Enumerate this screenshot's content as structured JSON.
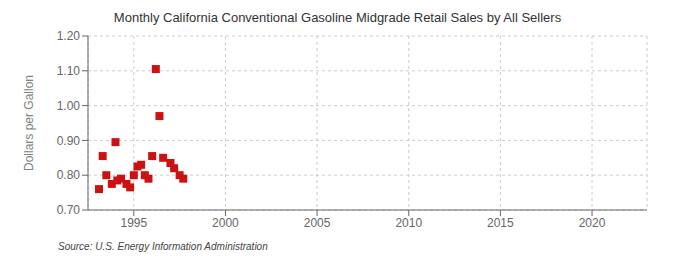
{
  "chart_data": {
    "type": "scatter",
    "title": "Monthly California Conventional Gasoline Midgrade Retail Sales by All Sellers",
    "y_label": "Dollars per Gallon",
    "annotations": [
      "Source: U.S. Energy Information Administration"
    ],
    "x": [
      1993.1,
      1993.3,
      1993.5,
      1993.8,
      1994.0,
      1994.1,
      1994.3,
      1994.6,
      1994.8,
      1995.0,
      1995.2,
      1995.4,
      1995.6,
      1995.8,
      1996.0,
      1996.2,
      1996.4,
      1996.6,
      1997.0,
      1997.2,
      1997.5,
      1997.7
    ],
    "values": [
      0.76,
      0.855,
      0.8,
      0.775,
      0.895,
      0.785,
      0.79,
      0.775,
      0.765,
      0.8,
      0.825,
      0.83,
      0.8,
      0.79,
      0.855,
      1.105,
      0.97,
      0.85,
      0.835,
      0.82,
      0.8,
      0.79
    ],
    "color": "#cc1111",
    "marker": "square",
    "xlim": [
      1992.5,
      2023
    ],
    "ylim": [
      0.7,
      1.2
    ],
    "xticks": [
      1995,
      2000,
      2005,
      2010,
      2015,
      2020
    ],
    "yticks": [
      {
        "value": 0.7,
        "label": "0.70"
      },
      {
        "value": 0.8,
        "label": "0.80"
      },
      {
        "value": 0.9,
        "label": "0.90"
      },
      {
        "value": 1.0,
        "label": "1.00"
      },
      {
        "value": 1.1,
        "label": "1.10"
      },
      {
        "value": 1.2,
        "label": "1.20"
      }
    ],
    "grid": true
  }
}
